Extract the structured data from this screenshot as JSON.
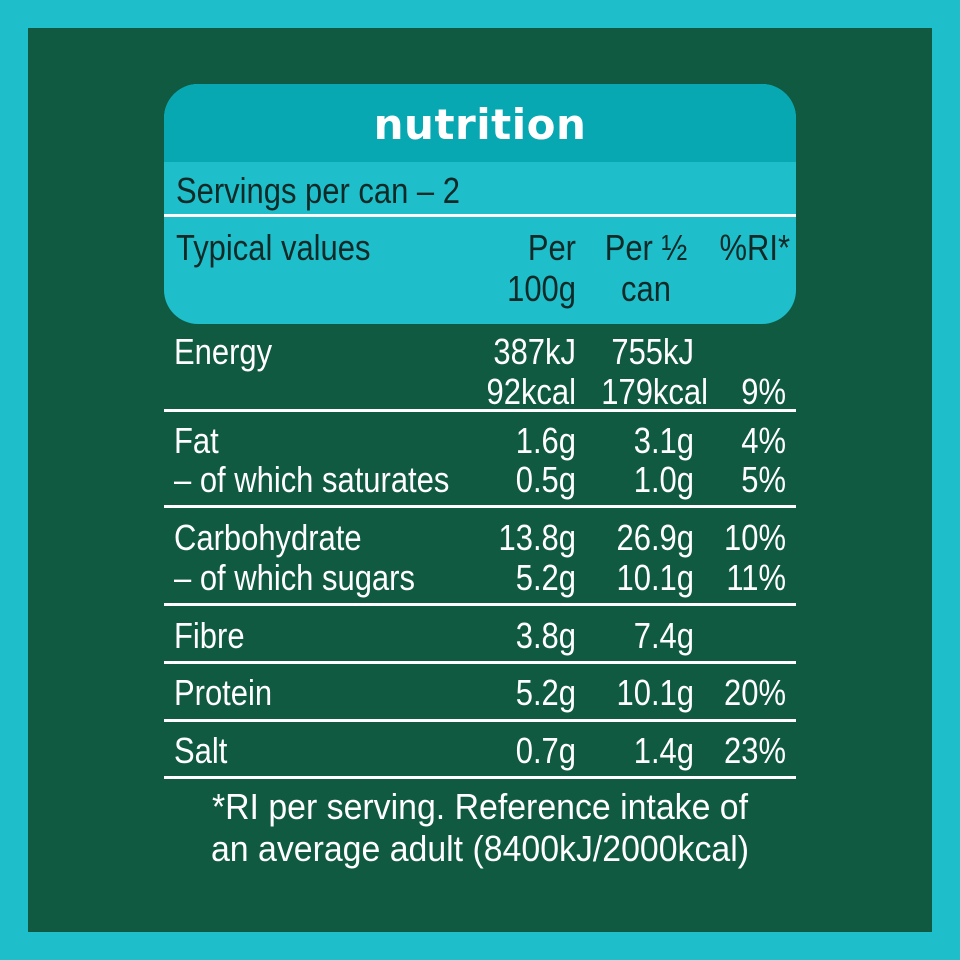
{
  "title": "nutrition",
  "servings": "Servings per can – 2",
  "headers": {
    "typical": "Typical values",
    "per100_l1": "Per",
    "per100_l2": "100g",
    "perhalf_l1": "Per ½",
    "perhalf_l2": "can",
    "ri": "%RI*"
  },
  "rows": {
    "energy": {
      "name": "Energy",
      "per100_kj": "387kJ",
      "per100_kcal": "92kcal",
      "perhalf_kj": "755kJ",
      "perhalf_kcal": "179kcal",
      "ri": "9%"
    },
    "fat": {
      "name": "Fat",
      "per100": "1.6g",
      "perhalf": "3.1g",
      "ri": "4%"
    },
    "saturates": {
      "name": "– of which saturates",
      "per100": "0.5g",
      "perhalf": "1.0g",
      "ri": "5%"
    },
    "carbohydrate": {
      "name": "Carbohydrate",
      "per100": "13.8g",
      "perhalf": "26.9g",
      "ri": "10%"
    },
    "sugars": {
      "name": "– of which sugars",
      "per100": "5.2g",
      "perhalf": "10.1g",
      "ri": "11%"
    },
    "fibre": {
      "name": "Fibre",
      "per100": "3.8g",
      "perhalf": "7.4g",
      "ri": ""
    },
    "protein": {
      "name": "Protein",
      "per100": "5.2g",
      "perhalf": "10.1g",
      "ri": "20%"
    },
    "salt": {
      "name": "Salt",
      "per100": "0.7g",
      "perhalf": "1.4g",
      "ri": "23%"
    }
  },
  "footnote_l1": "*RI per serving. Reference intake of",
  "footnote_l2": "an average adult (8400kJ/2000kcal)",
  "colors": {
    "outer": "#1fbecb",
    "panel": "#0f5a40",
    "title_band": "#08a8b2",
    "text_dark": "#0f2a27",
    "text_light": "#ffffff"
  }
}
